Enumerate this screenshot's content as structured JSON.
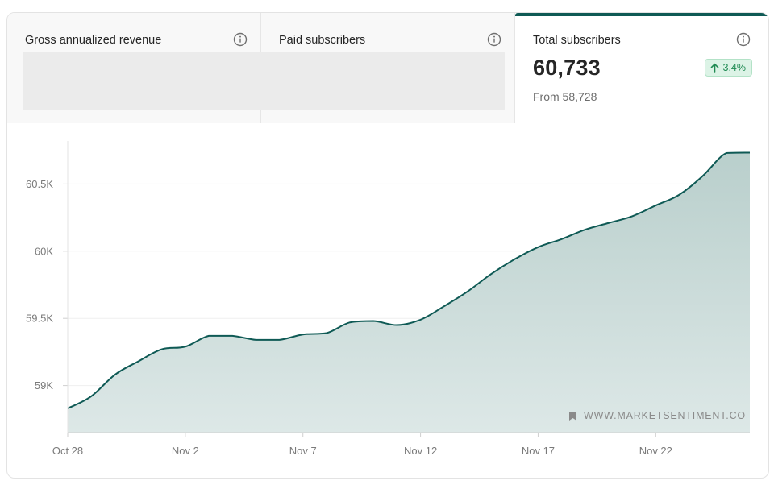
{
  "tabs": [
    {
      "title": "Gross annualized revenue",
      "active": false
    },
    {
      "title": "Paid subscribers",
      "active": false
    },
    {
      "title": "Total subscribers",
      "active": true,
      "value": "60,733",
      "change": "3.4%",
      "from": "From 58,728"
    }
  ],
  "icons": {
    "info": "info-icon",
    "change": "arrow-up-icon",
    "watermark": "bookmark-icon"
  },
  "colors": {
    "accent": "#0f5a55",
    "fill_top": "#b9cfcc",
    "fill_bottom": "#dde8e7",
    "badge_bg": "#dcf3e6",
    "badge_text": "#1f8a52"
  },
  "watermark": "WWW.MARKETSENTIMENT.CO",
  "chart_data": {
    "type": "area",
    "title": "",
    "xlabel": "",
    "ylabel": "",
    "x_ticks": [
      "Oct 28",
      "Nov 2",
      "Nov 7",
      "Nov 12",
      "Nov 17",
      "Nov 22"
    ],
    "y_ticks": [
      {
        "value": 59000,
        "label": "59K"
      },
      {
        "value": 59500,
        "label": "59.5K"
      },
      {
        "value": 60000,
        "label": "60K"
      },
      {
        "value": 60500,
        "label": "60.5K"
      }
    ],
    "ylim": [
      58650,
      60820
    ],
    "xlim": [
      "2023-10-28",
      "2023-11-26"
    ],
    "grid": true,
    "series": [
      {
        "x": [
          "2023-10-28",
          "2023-10-29",
          "2023-10-30",
          "2023-10-31",
          "2023-11-01",
          "2023-11-02",
          "2023-11-03",
          "2023-11-04",
          "2023-11-05",
          "2023-11-06",
          "2023-11-07",
          "2023-11-08",
          "2023-11-09",
          "2023-11-10",
          "2023-11-11",
          "2023-11-12",
          "2023-11-13",
          "2023-11-14",
          "2023-11-15",
          "2023-11-16",
          "2023-11-17",
          "2023-11-18",
          "2023-11-19",
          "2023-11-20",
          "2023-11-21",
          "2023-11-22",
          "2023-11-23",
          "2023-11-24",
          "2023-11-25",
          "2023-11-26"
        ],
        "values": [
          58830,
          58920,
          59080,
          59180,
          59270,
          59290,
          59370,
          59370,
          59340,
          59340,
          59380,
          59390,
          59470,
          59480,
          59450,
          59490,
          59590,
          59700,
          59830,
          59940,
          60030,
          60090,
          60160,
          60210,
          60260,
          60340,
          60420,
          60560,
          60730,
          60733
        ]
      }
    ]
  }
}
